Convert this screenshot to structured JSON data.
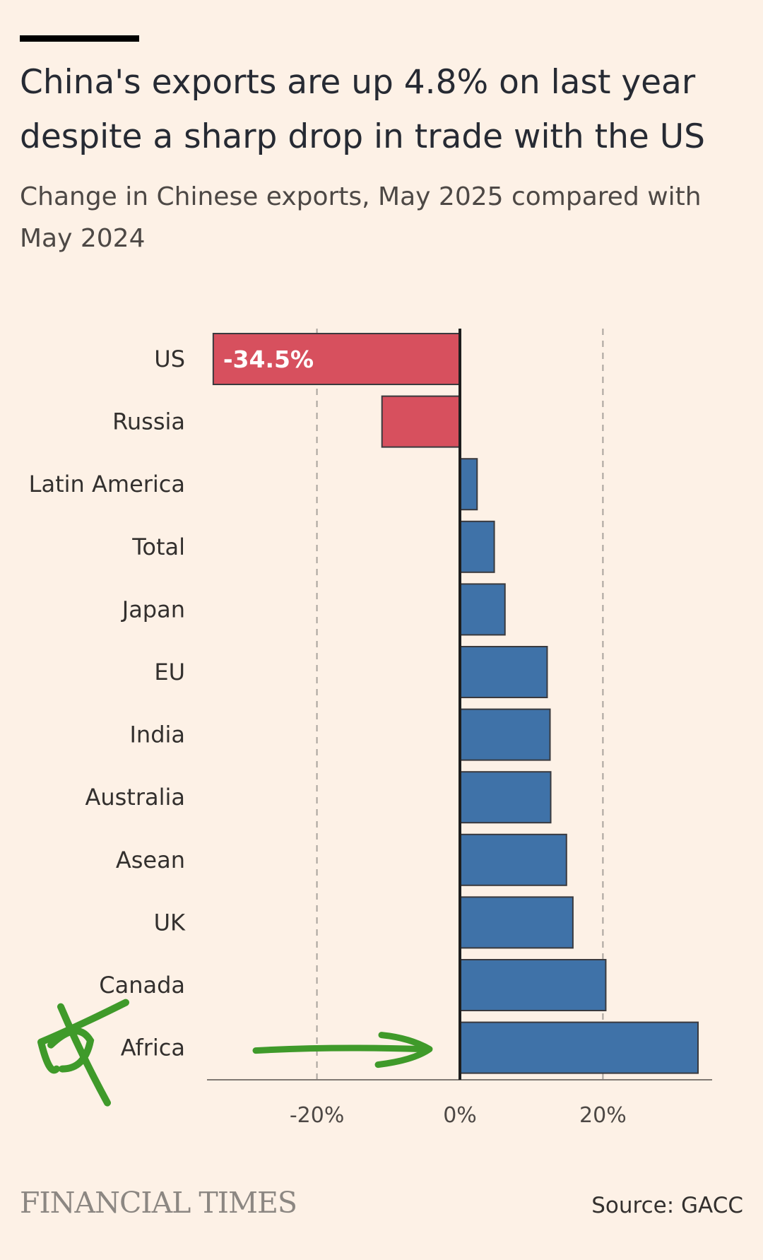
{
  "header": {
    "title": "China's exports are up 4.8% on last year despite a sharp drop in trade with the US",
    "subtitle": "Change in Chinese exports, May 2025 compared with May 2024"
  },
  "chart_data": {
    "type": "bar",
    "orientation": "horizontal",
    "title": "China's exports are up 4.8% on last year despite a sharp drop in trade with the US",
    "subtitle": "Change in Chinese exports, May 2025 compared with May 2024",
    "categories": [
      "US",
      "Russia",
      "Latin America",
      "Total",
      "Japan",
      "EU",
      "India",
      "Australia",
      "Asean",
      "UK",
      "Canada",
      "Africa"
    ],
    "values": [
      -34.5,
      -10.9,
      2.4,
      4.8,
      6.3,
      12.2,
      12.6,
      12.7,
      14.9,
      15.8,
      20.4,
      33.3
    ],
    "data_labels": [
      {
        "category": "US",
        "text": "-34.5%"
      }
    ],
    "xlim": [
      -35,
      35
    ],
    "ticks": [
      {
        "value": -20,
        "label": "-20%"
      },
      {
        "value": 0,
        "label": "0%"
      },
      {
        "value": 20,
        "label": "20%"
      }
    ],
    "gridlines": "dashed at -20% and 20%",
    "colors": {
      "negative": "#d7505e",
      "positive": "#3f72a8",
      "annotation": "#3f9a2a"
    },
    "annotation": "green hand-drawn cross next to Africa and arrow pointing to the Africa bar"
  },
  "footer": {
    "publisher": "FINANCIAL TIMES",
    "source": "Source: GACC"
  }
}
